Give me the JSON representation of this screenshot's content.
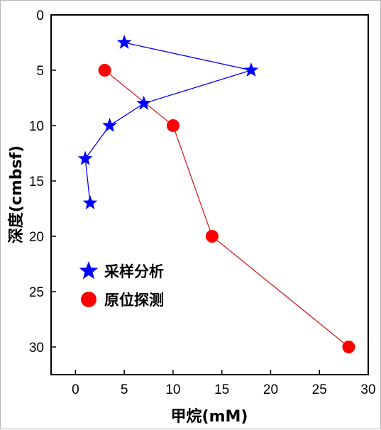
{
  "chart_data": {
    "type": "line",
    "xlabel": "甲烷(mM)",
    "ylabel": "深度(cmbsf)",
    "xlim": [
      -2.5,
      30
    ],
    "ylim": [
      0,
      32.5
    ],
    "y_inverted": true,
    "xticks": [
      0,
      5,
      10,
      15,
      20,
      25,
      30
    ],
    "yticks": [
      0,
      5,
      10,
      15,
      20,
      25,
      30
    ],
    "grid": false,
    "legend_position": "lower-left",
    "series": [
      {
        "name": "采样分析",
        "marker": "star",
        "color": "#0000ff",
        "points": [
          {
            "x": 5,
            "y": 2.5
          },
          {
            "x": 18,
            "y": 5
          },
          {
            "x": 7,
            "y": 8
          },
          {
            "x": 3.5,
            "y": 10
          },
          {
            "x": 1,
            "y": 13
          },
          {
            "x": 1.5,
            "y": 17
          }
        ]
      },
      {
        "name": "原位探测",
        "marker": "circle",
        "color": "#ff0000",
        "line_color": "#d62020",
        "points": [
          {
            "x": 3,
            "y": 5
          },
          {
            "x": 10,
            "y": 10
          },
          {
            "x": 14,
            "y": 20
          },
          {
            "x": 28,
            "y": 30
          }
        ]
      }
    ]
  }
}
